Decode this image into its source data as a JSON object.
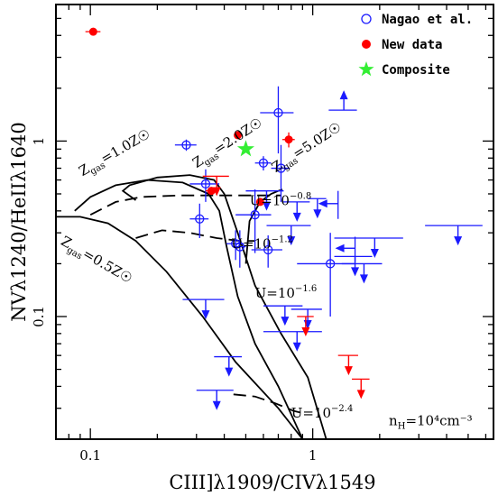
{
  "chart_data": {
    "type": "scatter",
    "title": "",
    "xlabel": "CIII]λ1909/CIVλ1549",
    "ylabel": "NVλ1240/HeIIλ1640",
    "x_scale": "log",
    "y_scale": "log",
    "xlim": [
      0.07,
      6.5
    ],
    "ylim": [
      0.02,
      6.0
    ],
    "x_ticks": [
      {
        "value": 0.1,
        "label": "0.1"
      },
      {
        "value": 1,
        "label": "1"
      }
    ],
    "y_ticks": [
      {
        "value": 0.1,
        "label": "0.1"
      },
      {
        "value": 1,
        "label": "1"
      }
    ],
    "legend_position": "top-right",
    "legend": [
      {
        "label": "Nagao et al.",
        "marker": "open-circle",
        "color": "#1a1aff"
      },
      {
        "label": "New data",
        "marker": "filled-circle",
        "color": "#ff0000"
      },
      {
        "label": "Composite",
        "marker": "star",
        "color": "#33ee33"
      }
    ],
    "series": [
      {
        "name": "Nagao et al.",
        "color": "#1a1aff",
        "detections": [
          {
            "x": 0.27,
            "y": 0.95,
            "xerr": 0.03,
            "yerr": 0.07
          },
          {
            "x": 0.7,
            "y": 1.45,
            "xerr": 0.12,
            "yerr": 0.6
          },
          {
            "x": 0.6,
            "y": 0.75,
            "xerr": 0.05,
            "yerr": 0.07
          },
          {
            "x": 0.72,
            "y": 0.7,
            "xerr": 0.07,
            "yerr": 0.25
          },
          {
            "x": 0.33,
            "y": 0.57,
            "xerr": 0.05,
            "yerr": 0.12
          },
          {
            "x": 0.31,
            "y": 0.36,
            "xerr": 0.03,
            "yerr": 0.08
          },
          {
            "x": 0.55,
            "y": 0.38,
            "xerr": 0.1,
            "yerr": 0.15
          },
          {
            "x": 0.45,
            "y": 0.26,
            "xerr": 0.04,
            "yerr": 0.05
          },
          {
            "x": 0.47,
            "y": 0.25,
            "xerr": 0.03,
            "yerr": 0.06
          },
          {
            "x": 0.63,
            "y": 0.24,
            "xerr": 0.1,
            "yerr": 0.05
          },
          {
            "x": 1.2,
            "y": 0.2,
            "xerr": 0.35,
            "yerr": 0.1
          }
        ],
        "upper_limits": [
          {
            "x": 0.62,
            "y": 0.52,
            "xerr": 0.12
          },
          {
            "x": 0.85,
            "y": 0.45,
            "xerr": 0.12
          },
          {
            "x": 1.05,
            "y": 0.47,
            "xerr": 0.1
          },
          {
            "x": 0.8,
            "y": 0.33,
            "xerr": 0.18
          },
          {
            "x": 1.9,
            "y": 0.28,
            "xerr": 0.65
          },
          {
            "x": 4.5,
            "y": 0.33,
            "xerr": 1.3
          },
          {
            "x": 1.55,
            "y": 0.22,
            "xerr": 0.3
          },
          {
            "x": 1.7,
            "y": 0.2,
            "xerr": 0.35
          },
          {
            "x": 0.33,
            "y": 0.125,
            "xerr": 0.07
          },
          {
            "x": 0.75,
            "y": 0.115,
            "xerr": 0.15
          },
          {
            "x": 0.95,
            "y": 0.11,
            "xerr": 0.15
          },
          {
            "x": 0.85,
            "y": 0.082,
            "xerr": 0.25
          },
          {
            "x": 0.42,
            "y": 0.059,
            "xerr": 0.06
          },
          {
            "x": 0.37,
            "y": 0.038,
            "xerr": 0.07
          }
        ],
        "lower_limits": [
          {
            "x": 1.38,
            "y": 1.5,
            "xerr": 0.2
          }
        ],
        "left_limits": [
          {
            "x": 1.3,
            "y": 0.44,
            "yerr": 0.08
          },
          {
            "x": 1.55,
            "y": 0.245,
            "yerr": 0.04
          }
        ]
      },
      {
        "name": "New data",
        "color": "#ff0000",
        "detections": [
          {
            "x": 0.103,
            "y": 4.2,
            "xerr": 0.008,
            "yerr": 0
          },
          {
            "x": 0.46,
            "y": 1.08,
            "xerr": 0,
            "yerr": 0
          },
          {
            "x": 0.78,
            "y": 1.02,
            "xerr": 0.05,
            "yerr": 0.1
          },
          {
            "x": 0.35,
            "y": 0.52,
            "xerr": 0.02,
            "yerr": 0
          },
          {
            "x": 0.58,
            "y": 0.45,
            "xerr": 0,
            "yerr": 0
          }
        ],
        "upper_limits": [
          {
            "x": 0.37,
            "y": 0.63,
            "xerr": 0.05
          },
          {
            "x": 0.93,
            "y": 0.1,
            "xerr": 0.08
          },
          {
            "x": 1.45,
            "y": 0.06,
            "xerr": 0.15
          },
          {
            "x": 1.65,
            "y": 0.044,
            "xerr": 0.15
          }
        ]
      },
      {
        "name": "Composite",
        "color": "#33ee33",
        "detections": [
          {
            "x": 0.5,
            "y": 0.9
          }
        ]
      }
    ],
    "annotations": [
      {
        "text": "Z",
        "sub": "gas",
        "suffix": "=1.0Z☉",
        "x": 0.092,
        "y": 0.63,
        "rotate": -30
      },
      {
        "text": "Z",
        "sub": "gas",
        "suffix": "=2.0Z☉",
        "x": 0.3,
        "y": 0.7,
        "rotate": -33
      },
      {
        "text": "Z",
        "sub": "gas",
        "suffix": "=5.0Z☉",
        "x": 0.68,
        "y": 0.66,
        "rotate": -33
      },
      {
        "text": "Z",
        "sub": "gas",
        "suffix": "=0.5Z☉",
        "x": 0.073,
        "y": 0.26,
        "rotate": 30
      },
      {
        "text": "U=10",
        "sup": "−0.8",
        "x": 0.52,
        "y": 0.43
      },
      {
        "text": "U=10",
        "sup": "−1.2",
        "x": 0.43,
        "y": 0.245
      },
      {
        "text": "U=10",
        "sup": "−1.6",
        "x": 0.55,
        "y": 0.128
      },
      {
        "text": "U=10",
        "sup": "−2.4",
        "x": 0.8,
        "y": 0.0265
      },
      {
        "text": "n",
        "sub": "H",
        "suffix": "=10⁴cm⁻³",
        "x": 2.2,
        "y": 0.024
      }
    ]
  }
}
